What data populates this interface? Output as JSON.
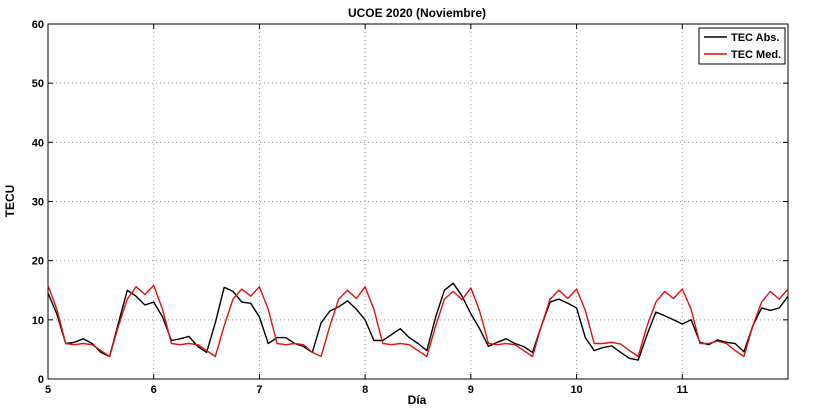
{
  "chart_data": {
    "type": "line",
    "title": "UCOE 2020 (Noviembre)",
    "xlabel": "Día",
    "ylabel": "TECU",
    "xlim": [
      5,
      12
    ],
    "ylim": [
      0,
      60
    ],
    "xticks": [
      5,
      6,
      7,
      8,
      9,
      10,
      11
    ],
    "yticks": [
      0,
      10,
      20,
      30,
      40,
      50,
      60
    ],
    "grid": "dotted",
    "legend_position": "top-right",
    "colors": {
      "TEC Abs.": "#000000",
      "TEC Med.": "#e01010"
    },
    "series": [
      {
        "name": "TEC Abs.",
        "x": [
          5.0,
          5.083,
          5.167,
          5.25,
          5.333,
          5.417,
          5.5,
          5.583,
          5.667,
          5.75,
          5.833,
          5.917,
          6.0,
          6.083,
          6.167,
          6.25,
          6.333,
          6.417,
          6.5,
          6.583,
          6.667,
          6.75,
          6.833,
          6.917,
          7.0,
          7.083,
          7.167,
          7.25,
          7.333,
          7.417,
          7.5,
          7.583,
          7.667,
          7.75,
          7.833,
          7.917,
          8.0,
          8.083,
          8.167,
          8.25,
          8.333,
          8.417,
          8.5,
          8.583,
          8.667,
          8.75,
          8.833,
          8.917,
          9.0,
          9.083,
          9.167,
          9.25,
          9.333,
          9.417,
          9.5,
          9.583,
          9.667,
          9.75,
          9.833,
          9.917,
          10.0,
          10.083,
          10.167,
          10.25,
          10.333,
          10.417,
          10.5,
          10.583,
          10.667,
          10.75,
          10.833,
          10.917,
          11.0,
          11.083,
          11.167,
          11.25,
          11.333,
          11.417,
          11.5,
          11.583,
          11.667,
          11.75,
          11.833,
          11.917,
          12.0
        ],
        "y": [
          14.5,
          11.0,
          6.0,
          6.2,
          6.8,
          6.0,
          4.5,
          3.8,
          9.5,
          15.0,
          14.0,
          12.5,
          13.0,
          10.5,
          6.5,
          6.8,
          7.2,
          5.5,
          4.5,
          9.5,
          15.5,
          14.8,
          13.0,
          12.8,
          10.5,
          6.0,
          7.0,
          7.0,
          6.0,
          5.5,
          4.5,
          9.5,
          11.5,
          12.2,
          13.2,
          11.8,
          10.0,
          6.5,
          6.5,
          7.5,
          8.5,
          7.0,
          6.0,
          4.8,
          10.5,
          15.0,
          16.2,
          14.0,
          11.0,
          8.5,
          5.5,
          6.2,
          6.8,
          6.0,
          5.5,
          4.5,
          9.0,
          13.0,
          13.5,
          12.8,
          12.0,
          7.0,
          4.8,
          5.3,
          5.6,
          4.5,
          3.5,
          3.2,
          7.5,
          11.3,
          10.7,
          10.0,
          9.3,
          10.0,
          6.2,
          5.8,
          6.6,
          6.2,
          6.0,
          4.6,
          9.0,
          12.0,
          11.6,
          12.0,
          14.0
        ]
      },
      {
        "name": "TEC Med.",
        "x": [
          5.0,
          5.083,
          5.167,
          5.25,
          5.333,
          5.417,
          5.5,
          5.583,
          5.667,
          5.75,
          5.833,
          5.917,
          6.0,
          6.083,
          6.167,
          6.25,
          6.333,
          6.417,
          6.5,
          6.583,
          6.667,
          6.75,
          6.833,
          6.917,
          7.0,
          7.083,
          7.167,
          7.25,
          7.333,
          7.417,
          7.5,
          7.583,
          7.667,
          7.75,
          7.833,
          7.917,
          8.0,
          8.083,
          8.167,
          8.25,
          8.333,
          8.417,
          8.5,
          8.583,
          8.667,
          8.75,
          8.833,
          8.917,
          9.0,
          9.083,
          9.167,
          9.25,
          9.333,
          9.417,
          9.5,
          9.583,
          9.667,
          9.75,
          9.833,
          9.917,
          10.0,
          10.083,
          10.167,
          10.25,
          10.333,
          10.417,
          10.5,
          10.583,
          10.667,
          10.75,
          10.833,
          10.917,
          11.0,
          11.083,
          11.167,
          11.25,
          11.333,
          11.417,
          11.5,
          11.583,
          11.667,
          11.75,
          11.833,
          11.917,
          12.0
        ],
        "y": [
          15.8,
          11.8,
          6.0,
          5.8,
          6.0,
          5.8,
          4.8,
          3.8,
          9.0,
          13.5,
          15.6,
          14.3,
          15.8,
          11.8,
          6.0,
          5.8,
          6.0,
          5.8,
          4.8,
          3.8,
          9.0,
          13.5,
          15.2,
          14.0,
          15.6,
          11.8,
          6.0,
          5.8,
          6.0,
          5.8,
          4.5,
          3.8,
          9.0,
          13.5,
          15.0,
          13.6,
          15.6,
          11.8,
          6.0,
          5.8,
          6.0,
          5.8,
          4.8,
          3.8,
          9.0,
          13.5,
          14.8,
          13.4,
          15.4,
          11.5,
          6.0,
          5.8,
          6.0,
          5.8,
          4.8,
          3.8,
          9.0,
          13.5,
          15.0,
          13.6,
          15.2,
          11.6,
          6.0,
          6.0,
          6.2,
          5.9,
          4.8,
          3.8,
          9.0,
          13.0,
          14.8,
          13.6,
          15.2,
          11.8,
          6.0,
          6.0,
          6.4,
          6.0,
          4.8,
          3.8,
          9.0,
          13.0,
          14.8,
          13.5,
          15.2
        ]
      }
    ]
  }
}
